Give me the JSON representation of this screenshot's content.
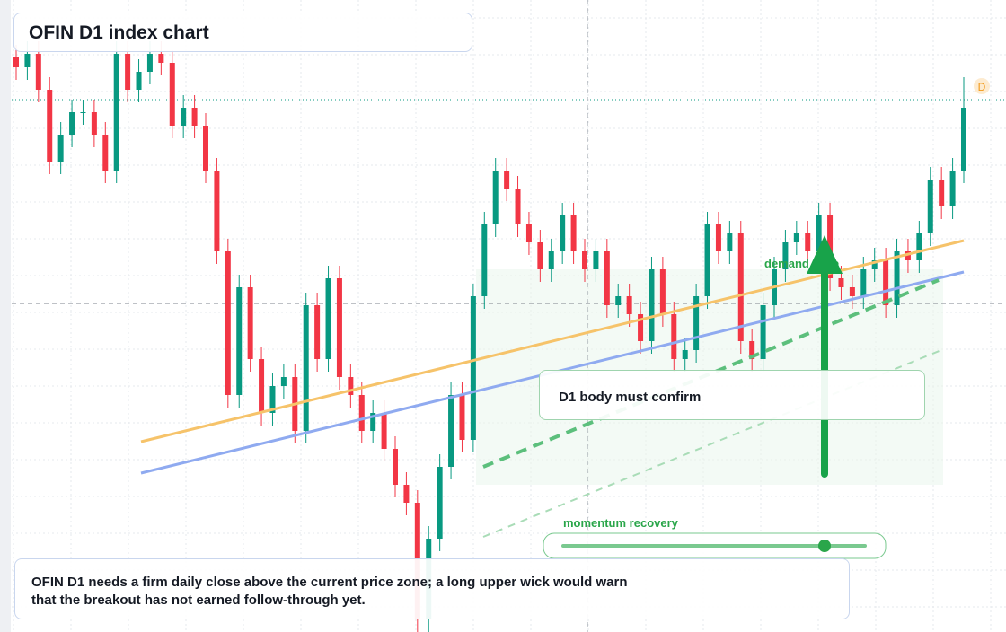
{
  "chart_data": {
    "type": "candlestick",
    "title": "OFIN D1 index chart",
    "note": "OFIN D1 needs a firm daily close above the current price zone; a long upper wick would warn that the breakout has not earned follow-through yet.",
    "callout": "D1 body must confirm",
    "zone_label": "demand zone",
    "slider_label": "momentum recovery",
    "badge": "D",
    "up_color": "#089981",
    "down_color": "#f23645",
    "ylim": [
      0,
      704
    ],
    "grid": true,
    "open": [
      640,
      629,
      644,
      604,
      524,
      554,
      579,
      579,
      554,
      514,
      644,
      604,
      624,
      644,
      634,
      564,
      584,
      564,
      514,
      424,
      264,
      384,
      304,
      244,
      274,
      284,
      224,
      364,
      304,
      394,
      284,
      264,
      224,
      244,
      204,
      164,
      144,
      14,
      104,
      184,
      264,
      214,
      374,
      454,
      514,
      494,
      454,
      434,
      404,
      424,
      464,
      424,
      404,
      424,
      364,
      374,
      354,
      324,
      404,
      354,
      304,
      314,
      374,
      454,
      424,
      444,
      324,
      304,
      364,
      404,
      434,
      444,
      424,
      464,
      394,
      384,
      374,
      404,
      414,
      364,
      424,
      414,
      444,
      504,
      474,
      514
    ],
    "high": [
      654,
      658,
      658,
      618,
      568,
      593,
      593,
      593,
      568,
      658,
      658,
      638,
      658,
      658,
      648,
      598,
      598,
      578,
      528,
      438,
      398,
      398,
      318,
      288,
      298,
      298,
      378,
      378,
      408,
      408,
      298,
      278,
      258,
      258,
      218,
      178,
      158,
      118,
      198,
      278,
      278,
      388,
      468,
      528,
      528,
      508,
      468,
      448,
      438,
      478,
      478,
      438,
      438,
      438,
      388,
      388,
      368,
      418,
      418,
      368,
      328,
      388,
      468,
      468,
      458,
      458,
      338,
      378,
      418,
      448,
      458,
      458,
      478,
      478,
      408,
      398,
      418,
      428,
      428,
      438,
      438,
      458,
      518,
      518,
      528,
      618
    ],
    "low": [
      615,
      615,
      590,
      510,
      510,
      540,
      565,
      540,
      500,
      500,
      590,
      590,
      610,
      620,
      550,
      550,
      550,
      500,
      410,
      250,
      250,
      290,
      230,
      230,
      260,
      210,
      210,
      290,
      290,
      270,
      250,
      210,
      210,
      190,
      150,
      130,
      0,
      0,
      90,
      170,
      200,
      200,
      360,
      440,
      480,
      440,
      420,
      390,
      390,
      410,
      410,
      390,
      390,
      350,
      350,
      340,
      310,
      310,
      340,
      290,
      290,
      300,
      360,
      410,
      410,
      310,
      290,
      290,
      350,
      390,
      420,
      410,
      410,
      380,
      370,
      360,
      360,
      390,
      350,
      350,
      400,
      400,
      430,
      460,
      460,
      500
    ],
    "close": [
      629,
      644,
      604,
      524,
      554,
      579,
      579,
      554,
      514,
      644,
      604,
      624,
      644,
      634,
      564,
      584,
      564,
      514,
      424,
      264,
      384,
      304,
      244,
      274,
      284,
      224,
      364,
      304,
      394,
      284,
      264,
      224,
      244,
      204,
      164,
      144,
      14,
      104,
      184,
      264,
      214,
      374,
      454,
      514,
      494,
      454,
      434,
      404,
      424,
      464,
      424,
      404,
      424,
      364,
      374,
      354,
      324,
      404,
      354,
      304,
      314,
      374,
      454,
      424,
      444,
      324,
      304,
      364,
      404,
      434,
      444,
      424,
      464,
      394,
      384,
      374,
      404,
      414,
      364,
      424,
      414,
      444,
      504,
      474,
      514,
      584
    ]
  }
}
